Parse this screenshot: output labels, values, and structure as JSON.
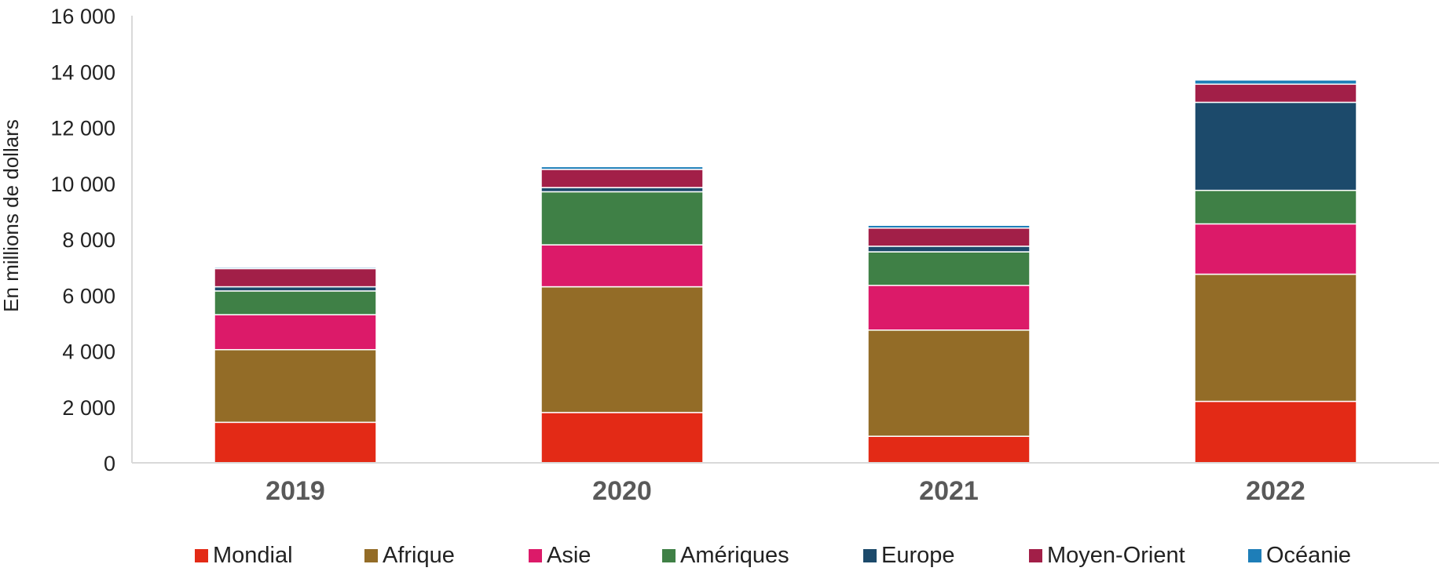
{
  "chart_data": {
    "type": "bar",
    "stacked": true,
    "categories": [
      "2019",
      "2020",
      "2021",
      "2022"
    ],
    "series": [
      {
        "name": "Mondial",
        "color": "#E32A16",
        "values": [
          1450,
          1800,
          950,
          2200
        ]
      },
      {
        "name": "Afrique",
        "color": "#936C27",
        "values": [
          2600,
          4500,
          3800,
          4550
        ]
      },
      {
        "name": "Asie",
        "color": "#DC1A69",
        "values": [
          1250,
          1500,
          1600,
          1800
        ]
      },
      {
        "name": "Amériques",
        "color": "#3F8046",
        "values": [
          850,
          1900,
          1200,
          1200
        ]
      },
      {
        "name": "Europe",
        "color": "#1C4A6B",
        "values": [
          150,
          150,
          200,
          3150
        ]
      },
      {
        "name": "Moyen-Orient",
        "color": "#A21F48",
        "values": [
          650,
          650,
          650,
          650
        ]
      },
      {
        "name": "Océanie",
        "color": "#1E7EB8",
        "values": [
          50,
          100,
          100,
          150
        ]
      }
    ],
    "ylabel": "En millions de dollars",
    "xlabel": "",
    "ylim": [
      0,
      16000
    ],
    "yticks": [
      0,
      2000,
      4000,
      6000,
      8000,
      10000,
      12000,
      14000,
      16000
    ],
    "ytick_labels": [
      "0",
      "2 000",
      "4 000",
      "6 000",
      "8 000",
      "10 000",
      "12 000",
      "14 000",
      "16 000"
    ],
    "grid": false,
    "legend_position": "bottom"
  }
}
